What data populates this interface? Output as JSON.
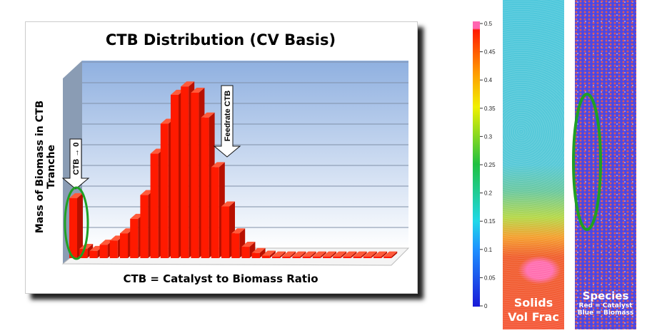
{
  "chart_data": {
    "type": "bar",
    "title": "CTB Distribution (CV Basis)",
    "xlabel": "CTB = Catalyst to Biomass Ratio",
    "ylabel": "Mass of Biomass in CTB Tranche",
    "grid": true,
    "ylim": [
      0,
      9
    ],
    "values": [
      2.9,
      0.45,
      0.35,
      0.65,
      0.85,
      1.2,
      1.9,
      3.05,
      5.05,
      6.5,
      7.9,
      8.3,
      8.0,
      6.8,
      4.4,
      2.5,
      1.2,
      0.55,
      0.25,
      0.12,
      0.08,
      0.08,
      0.08,
      0.08,
      0.08,
      0.08,
      0.08,
      0.08,
      0.08,
      0.08,
      0.08,
      0.08
    ],
    "bar_color": "#ff1a00",
    "annotations": [
      {
        "text": "CTB → 0",
        "bar_index": 0
      },
      {
        "text": "Feedrate CTB",
        "bar_index": 14
      }
    ]
  },
  "colorbar": {
    "ticks": [
      "0.5",
      "0.45",
      "0.4",
      "0.35",
      "0.3",
      "0.25",
      "0.2",
      "0.15",
      "0.1",
      "0.05",
      "0"
    ],
    "range": [
      0,
      0.5
    ]
  },
  "panels": {
    "solids_label_1": "Solids",
    "solids_label_2": "Vol Frac",
    "species_label": "Species",
    "species_red": "Red = Catalyst",
    "species_blue": "Blue = Biomass"
  }
}
